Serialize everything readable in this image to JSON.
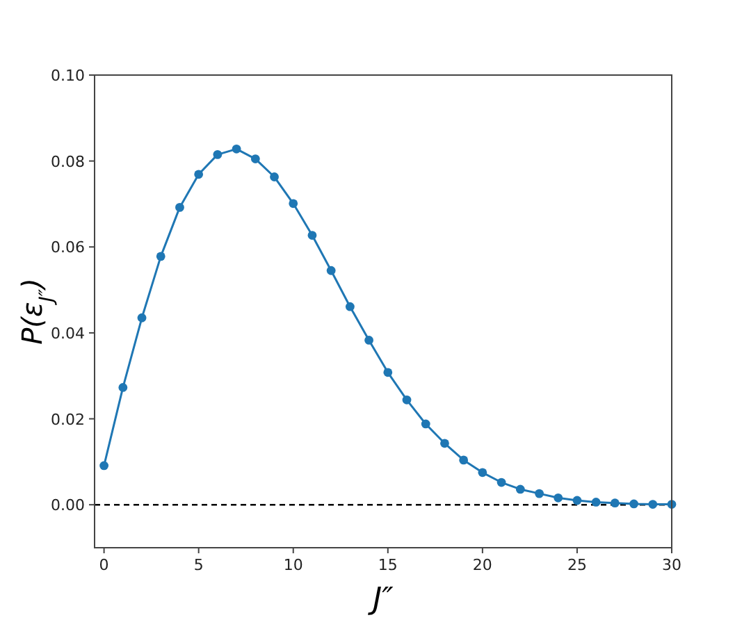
{
  "chart_data": {
    "type": "line",
    "xlabel": "J″",
    "ylabel": "P(ε$_{J″}$)",
    "x": [
      0,
      1,
      2,
      3,
      4,
      5,
      6,
      7,
      8,
      9,
      10,
      11,
      12,
      13,
      14,
      15,
      16,
      17,
      18,
      19,
      20,
      21,
      22,
      23,
      24,
      25,
      26,
      27,
      28,
      29,
      30
    ],
    "series": [
      {
        "color": "#1f77b4",
        "values": [
          0.0091,
          0.0273,
          0.0435,
          0.0578,
          0.0692,
          0.0769,
          0.0815,
          0.0828,
          0.0805,
          0.0763,
          0.0701,
          0.0627,
          0.0545,
          0.0461,
          0.0383,
          0.0308,
          0.0244,
          0.0188,
          0.0143,
          0.0104,
          0.0075,
          0.0052,
          0.0036,
          0.0026,
          0.0016,
          0.001,
          0.0006,
          0.0004,
          0.0002,
          0.0001,
          0.0001
        ]
      }
    ],
    "marker": "circle",
    "line_style": "solid",
    "xlim": [
      -0.5,
      30
    ],
    "xticks": [
      0,
      5,
      10,
      15,
      20,
      25,
      30
    ],
    "ylim": [
      -0.01,
      0.1
    ],
    "yticks": [
      {
        "value": 0,
        "label": "0.00"
      },
      {
        "value": 0.02,
        "label": "0.02"
      },
      {
        "value": 0.04,
        "label": "0.04"
      },
      {
        "value": 0.06,
        "label": "0.06"
      },
      {
        "value": 0.08,
        "label": "0.08"
      },
      {
        "value": 0.1,
        "label": "0.10"
      }
    ],
    "ref_lines": [
      {
        "axis": "y",
        "value": 0,
        "color": "#000000",
        "line_style": "dashed"
      }
    ],
    "grid": false
  }
}
